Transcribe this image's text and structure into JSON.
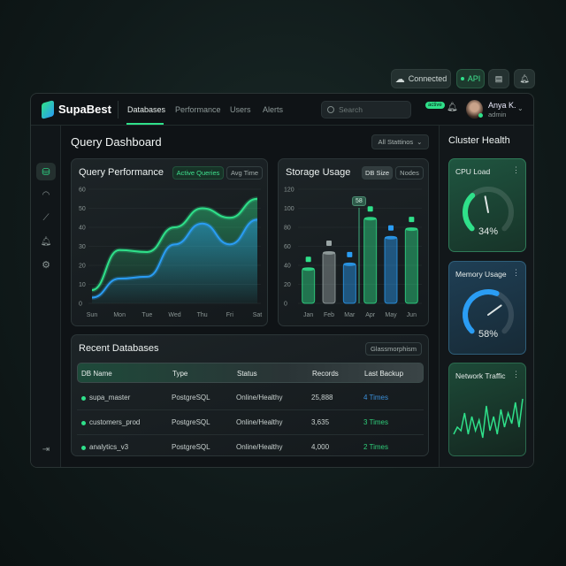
{
  "topbar": {
    "connected": "Connected",
    "api": "API"
  },
  "header": {
    "brand": "SupaBest",
    "nav": [
      "Databases",
      "Performance",
      "Users",
      "Alerts"
    ],
    "search_placeholder": "Search",
    "status_badge": "active",
    "user_name": "Anya K.",
    "user_role": "admin"
  },
  "main": {
    "title": "Query Dashboard",
    "filter": "All Stattinos"
  },
  "query_card": {
    "title": "Query Performance",
    "tabs": [
      "Active Queries",
      "Avg Time"
    ]
  },
  "storage_card": {
    "title": "Storage Usage",
    "tabs": [
      "DB Size",
      "Nodes"
    ],
    "marker_label": "58"
  },
  "table": {
    "title": "Recent Databases",
    "badge": "Glassmorphism",
    "headers": [
      "DB Name",
      "Type",
      "Status",
      "Records",
      "Last Backup"
    ],
    "rows": [
      [
        "supa_master",
        "PostgreSQL",
        "Online/Healthy",
        "25,888",
        "4 Times"
      ],
      [
        "customers_prod",
        "PostgreSQL",
        "Online/Healthy",
        "3,635",
        "3 Times"
      ],
      [
        "analytics_v3",
        "PostgreSQL",
        "Online/Healthy",
        "4,000",
        "2 Times"
      ]
    ],
    "backup_colors": [
      "#3b8fd9",
      "#2fce7a",
      "#2fce7a"
    ]
  },
  "cluster": {
    "title": "Cluster Health",
    "cpu_label": "CPU Load",
    "cpu_value": "34%",
    "cpu_pct": 34,
    "mem_label": "Memory Usage",
    "mem_value": "58%",
    "mem_pct": 58,
    "net_label": "Network Traffic",
    "net_series": [
      3,
      5,
      4,
      9,
      3,
      8,
      4,
      7,
      2,
      11,
      4,
      8,
      3,
      10,
      5,
      9,
      6,
      12,
      5,
      13
    ]
  },
  "colors": {
    "accent": "#2fe08a",
    "blue": "#2a9df4",
    "gray": "#9aa5a5"
  },
  "chart_data": [
    {
      "type": "area",
      "title": "Query Performance",
      "categories": [
        "Sun",
        "Mon",
        "Tue",
        "Wed",
        "Thu",
        "Fri",
        "Sat"
      ],
      "ylim": [
        0,
        60
      ],
      "yticks": [
        0,
        10,
        20,
        30,
        40,
        50,
        60
      ],
      "series": [
        {
          "name": "Active Queries",
          "color": "#2fe08a",
          "values": [
            7,
            28,
            27,
            40,
            50,
            45,
            55
          ]
        },
        {
          "name": "Avg Time",
          "color": "#2a9df4",
          "values": [
            3,
            13,
            14,
            31,
            42,
            31,
            44
          ]
        }
      ]
    },
    {
      "type": "bar",
      "title": "Storage Usage",
      "categories": [
        "Jan",
        "Feb",
        "Mar",
        "Apr",
        "May",
        "Jun"
      ],
      "ylim": [
        0,
        120
      ],
      "yticks": [
        0,
        20,
        40,
        60,
        80,
        100,
        120
      ],
      "values": [
        37,
        54,
        42,
        90,
        70,
        79
      ],
      "colors": [
        "#2fe08a",
        "#9aa5a5",
        "#2a9df4",
        "#2fe08a",
        "#2a9df4",
        "#2fe08a"
      ]
    }
  ]
}
